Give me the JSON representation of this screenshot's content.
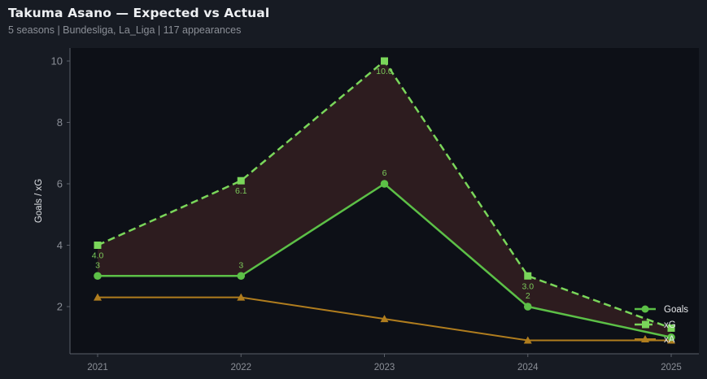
{
  "header": {
    "title": "Takuma Asano — Expected vs Actual",
    "subtitle": "5 seasons | Bundesliga, La_Liga | 117 appearances"
  },
  "colors": {
    "background": "#171b23",
    "plot_background": "#0d1017",
    "goals": "#5cc047",
    "xg": "#7ad65a",
    "xa": "#b07d1e",
    "fill_between": "#2d1c1f",
    "axis": "#5a5f68",
    "tick_text": "#8b8f97"
  },
  "chart_data": {
    "type": "line",
    "title": "Takuma Asano — Expected vs Actual",
    "subtitle": "5 seasons | Bundesliga, La_Liga | 117 appearances",
    "xlabel": "",
    "ylabel": "Goals / xG",
    "categories": [
      "2021",
      "2022",
      "2023",
      "2024",
      "2025"
    ],
    "series": [
      {
        "name": "Goals",
        "values": [
          3,
          3,
          6,
          2,
          1
        ],
        "marker": "circle",
        "style": "solid",
        "labels": [
          "3",
          "3",
          "6",
          "2",
          ""
        ]
      },
      {
        "name": "xG",
        "values": [
          4.0,
          6.1,
          10.0,
          3.0,
          1.3
        ],
        "marker": "square",
        "style": "dashed",
        "labels": [
          "4.0",
          "6.1",
          "10.0",
          "3.0",
          ""
        ]
      },
      {
        "name": "xA",
        "values": [
          2.3,
          2.3,
          1.6,
          0.9,
          0.9
        ],
        "marker": "triangle",
        "style": "solid"
      }
    ],
    "fill_between": [
      "Goals",
      "xG"
    ],
    "yticks": [
      2,
      4,
      6,
      8,
      10
    ],
    "ylim": [
      0.45,
      10.4
    ],
    "grid": false,
    "legend_position": "lower right"
  }
}
